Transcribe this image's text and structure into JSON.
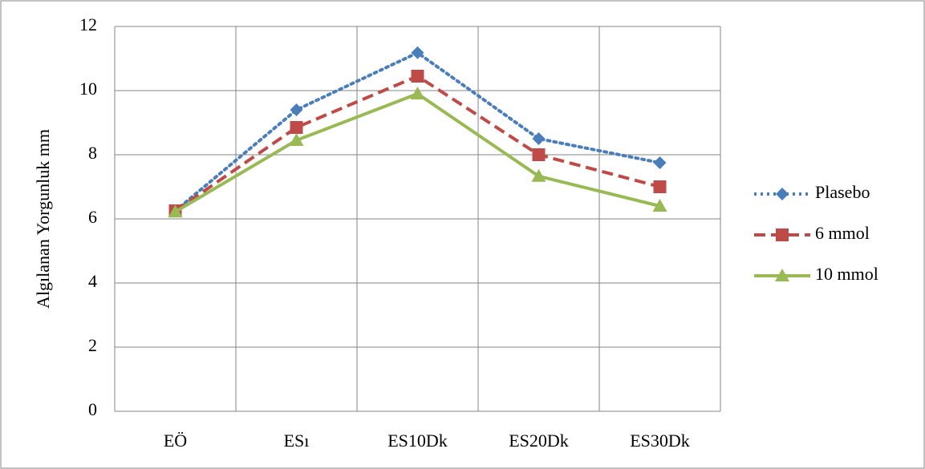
{
  "chart_data": {
    "type": "line",
    "y_label": "Algılanan Yorgunluk mm",
    "categories": [
      "EÖ",
      "ESı",
      "ES10Dk",
      "ES20Dk",
      "ES30Dk"
    ],
    "series": [
      {
        "name": "Plasebo",
        "color": "#4a7ebb",
        "dash": "dotted",
        "marker": "diamond",
        "values": [
          6.25,
          9.4,
          11.18,
          8.5,
          7.75
        ]
      },
      {
        "name": "6 mmol",
        "color": "#be4b48",
        "dash": "dashed",
        "marker": "square",
        "values": [
          6.25,
          8.85,
          10.45,
          8.0,
          7.0
        ]
      },
      {
        "name": "10 mmol",
        "color": "#98b954",
        "dash": "solid",
        "marker": "triangle",
        "values": [
          6.22,
          8.45,
          9.9,
          7.33,
          6.4
        ]
      }
    ],
    "ylim": [
      0,
      12
    ],
    "yticks": [
      0,
      2,
      4,
      6,
      8,
      10,
      12
    ],
    "grid": true,
    "legend": "right"
  }
}
